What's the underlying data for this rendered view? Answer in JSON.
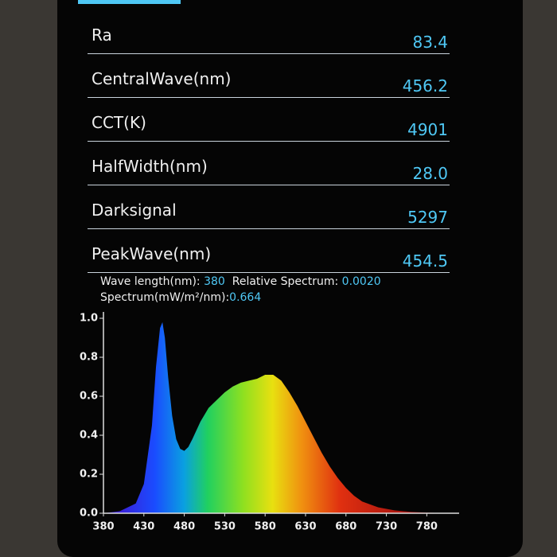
{
  "metrics": [
    {
      "label": "Ra",
      "value": "83.4"
    },
    {
      "label": "CentralWave(nm)",
      "value": "456.2"
    },
    {
      "label": "CCT(K)",
      "value": "4901"
    },
    {
      "label": "HalfWidth(nm)",
      "value": "28.0"
    },
    {
      "label": "Darksignal",
      "value": "5297"
    },
    {
      "label": "PeakWave(nm)",
      "value": "454.5"
    }
  ],
  "cursor": {
    "wave_label": "Wave length(nm):",
    "wave": "380",
    "rel_label": "Relative Spectrum:",
    "rel": "0.0020",
    "spec_label": "Spectrum(mW/m²/nm):",
    "spec": "0.664"
  },
  "chart_data": {
    "type": "area",
    "x": [
      380,
      400,
      420,
      430,
      440,
      445,
      450,
      453,
      456,
      460,
      465,
      470,
      475,
      480,
      485,
      490,
      500,
      510,
      520,
      530,
      540,
      550,
      560,
      570,
      580,
      590,
      600,
      610,
      620,
      630,
      640,
      650,
      660,
      670,
      680,
      690,
      700,
      720,
      740,
      760,
      780,
      800
    ],
    "values": [
      0,
      0.01,
      0.05,
      0.15,
      0.45,
      0.75,
      0.95,
      0.98,
      0.9,
      0.7,
      0.5,
      0.38,
      0.33,
      0.32,
      0.34,
      0.38,
      0.47,
      0.54,
      0.58,
      0.62,
      0.65,
      0.67,
      0.68,
      0.69,
      0.71,
      0.71,
      0.68,
      0.62,
      0.55,
      0.47,
      0.39,
      0.31,
      0.24,
      0.18,
      0.13,
      0.09,
      0.06,
      0.03,
      0.015,
      0.007,
      0.003,
      0.001
    ],
    "xlim": [
      380,
      820
    ],
    "ylim": [
      0,
      1
    ],
    "xticks": [
      380,
      430,
      480,
      530,
      580,
      630,
      680,
      730,
      780
    ],
    "yticks": [
      {
        "value": 0,
        "label": "0.0"
      },
      0.2,
      0.4,
      0.6,
      0.8,
      {
        "value": 1,
        "label": "1.0"
      }
    ]
  }
}
